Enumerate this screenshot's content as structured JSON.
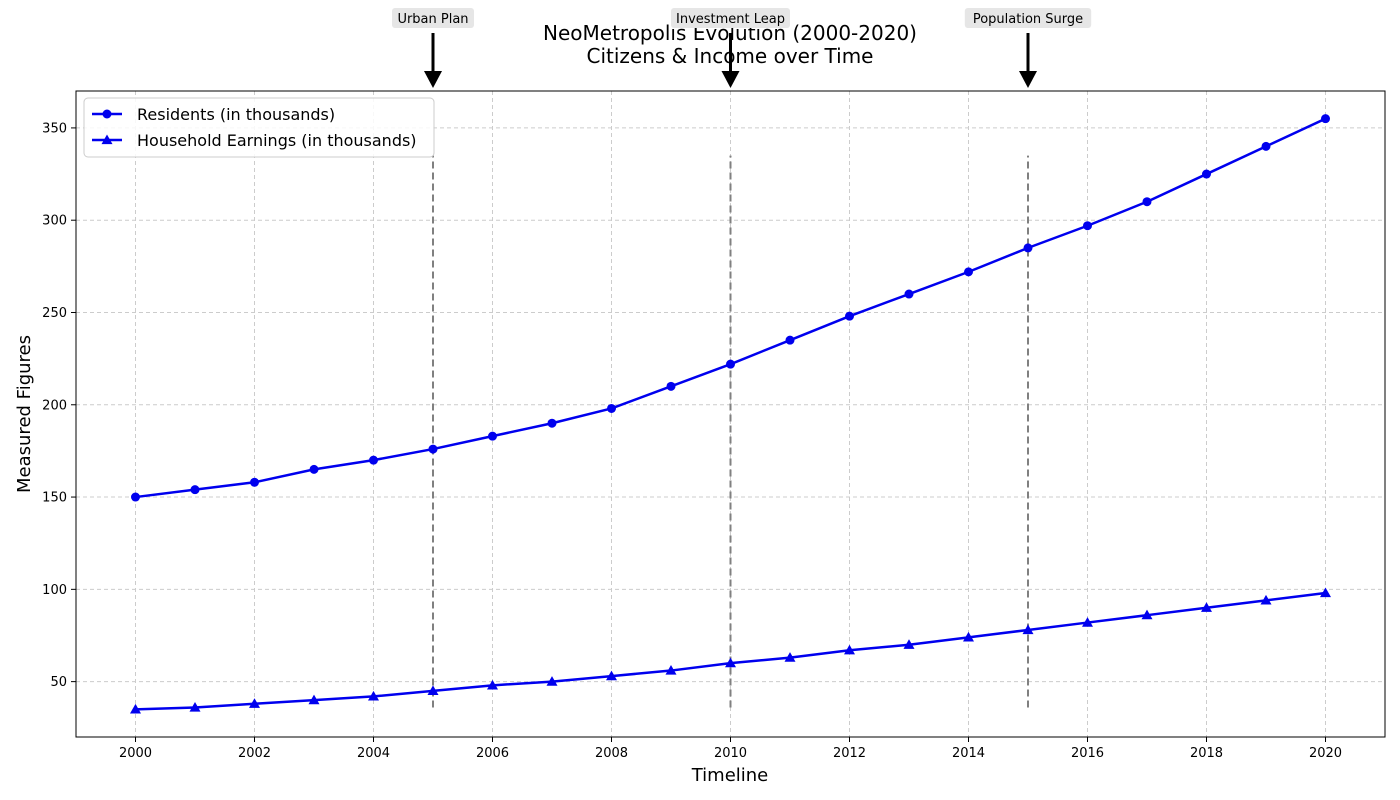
{
  "chart_data": {
    "type": "line",
    "title_line1": "NeoMetropolis Evolution (2000-2020)",
    "title_line2": "Citizens & Income over Time",
    "xlabel": "Timeline",
    "ylabel": "Measured Figures",
    "xlim": [
      1999,
      2021
    ],
    "ylim": [
      20,
      370
    ],
    "xticks": [
      "2000",
      "2002",
      "2004",
      "2006",
      "2008",
      "2010",
      "2012",
      "2014",
      "2016",
      "2018",
      "2020"
    ],
    "yticks": [
      "50",
      "100",
      "150",
      "200",
      "250",
      "300",
      "350"
    ],
    "grid": true,
    "legend_position": "upper-left",
    "x": [
      2000,
      2001,
      2002,
      2003,
      2004,
      2005,
      2006,
      2007,
      2008,
      2009,
      2010,
      2011,
      2012,
      2013,
      2014,
      2015,
      2016,
      2017,
      2018,
      2019,
      2020
    ],
    "series": [
      {
        "name": "Residents (in thousands)",
        "marker": "circle",
        "color": "#0000ee",
        "values": [
          150,
          154,
          158,
          165,
          170,
          176,
          183,
          190,
          198,
          210,
          222,
          235,
          248,
          260,
          272,
          285,
          297,
          310,
          325,
          340,
          355
        ]
      },
      {
        "name": "Household Earnings (in thousands)",
        "marker": "triangle",
        "color": "#0000ee",
        "values": [
          35,
          36,
          38,
          40,
          42,
          45,
          48,
          50,
          53,
          56,
          60,
          63,
          67,
          70,
          74,
          78,
          82,
          86,
          90,
          94,
          98
        ]
      }
    ],
    "vlines": [
      {
        "x": 2005,
        "ymin": 36,
        "ymax": 335
      },
      {
        "x": 2010,
        "ymin": 36,
        "ymax": 335
      },
      {
        "x": 2015,
        "ymin": 36,
        "ymax": 335
      }
    ],
    "annotations": [
      {
        "x": 2005,
        "text": "Urban Plan"
      },
      {
        "x": 2010,
        "text": "Investment Leap"
      },
      {
        "x": 2015,
        "text": "Population Surge"
      }
    ]
  }
}
